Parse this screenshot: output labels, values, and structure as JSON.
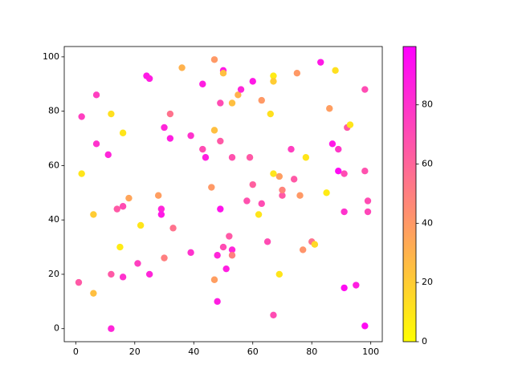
{
  "chart_data": {
    "type": "scatter",
    "x": [
      1,
      2,
      2,
      6,
      6,
      7,
      7,
      11,
      12,
      12,
      12,
      14,
      15,
      16,
      16,
      16,
      18,
      21,
      22,
      24,
      25,
      25,
      28,
      29,
      29,
      30,
      30,
      32,
      32,
      33,
      36,
      39,
      39,
      43,
      43,
      44,
      46,
      47,
      47,
      47,
      48,
      48,
      49,
      49,
      49,
      50,
      50,
      50,
      51,
      52,
      53,
      53,
      53,
      53,
      55,
      56,
      58,
      59,
      60,
      60,
      62,
      63,
      63,
      65,
      66,
      67,
      67,
      67,
      67,
      69,
      69,
      70,
      70,
      73,
      74,
      75,
      76,
      77,
      78,
      80,
      81,
      83,
      85,
      86,
      87,
      88,
      89,
      89,
      91,
      91,
      91,
      92,
      93,
      95,
      98,
      98,
      98,
      99,
      99
    ],
    "y": [
      17,
      78,
      57,
      13,
      42,
      86,
      68,
      64,
      79,
      20,
      0,
      44,
      30,
      72,
      45,
      19,
      48,
      24,
      38,
      93,
      92,
      20,
      49,
      44,
      42,
      26,
      74,
      79,
      70,
      37,
      96,
      28,
      71,
      90,
      66,
      63,
      52,
      99,
      73,
      18,
      27,
      10,
      83,
      69,
      44,
      95,
      94,
      30,
      22,
      34,
      83,
      63,
      29,
      27,
      86,
      88,
      47,
      63,
      91,
      53,
      42,
      84,
      46,
      32,
      79,
      93,
      91,
      57,
      5,
      56,
      20,
      49,
      51,
      66,
      55,
      94,
      49,
      29,
      63,
      32,
      31,
      98,
      50,
      81,
      68,
      95,
      66,
      58,
      57,
      43,
      15,
      74,
      75,
      16,
      88,
      58,
      1,
      47,
      43
    ],
    "c": [
      65,
      75,
      10,
      25,
      20,
      75,
      80,
      85,
      12,
      65,
      85,
      65,
      8,
      10,
      70,
      80,
      35,
      75,
      10,
      90,
      88,
      85,
      38,
      85,
      90,
      50,
      85,
      55,
      88,
      55,
      30,
      80,
      80,
      88,
      70,
      88,
      40,
      40,
      25,
      38,
      85,
      88,
      70,
      65,
      92,
      90,
      25,
      70,
      88,
      65,
      25,
      68,
      85,
      50,
      30,
      85,
      68,
      65,
      90,
      62,
      10,
      40,
      70,
      70,
      12,
      8,
      20,
      10,
      70,
      38,
      10,
      65,
      48,
      75,
      65,
      40,
      40,
      42,
      10,
      55,
      15,
      90,
      8,
      38,
      90,
      12,
      78,
      95,
      70,
      80,
      95,
      65,
      10,
      88,
      70,
      68,
      95,
      70,
      72
    ],
    "cmap_colors": [
      "#ffff00",
      "#ff00ff"
    ],
    "clim": [
      0,
      99.7
    ],
    "cticks": [
      0,
      20,
      40,
      60,
      80
    ],
    "xlim": [
      -3.9,
      103.9
    ],
    "xticks": [
      0,
      20,
      40,
      60,
      80,
      100
    ],
    "ylim": [
      -4.8,
      103.8
    ],
    "yticks": [
      0,
      20,
      40,
      60,
      80,
      100
    ]
  }
}
